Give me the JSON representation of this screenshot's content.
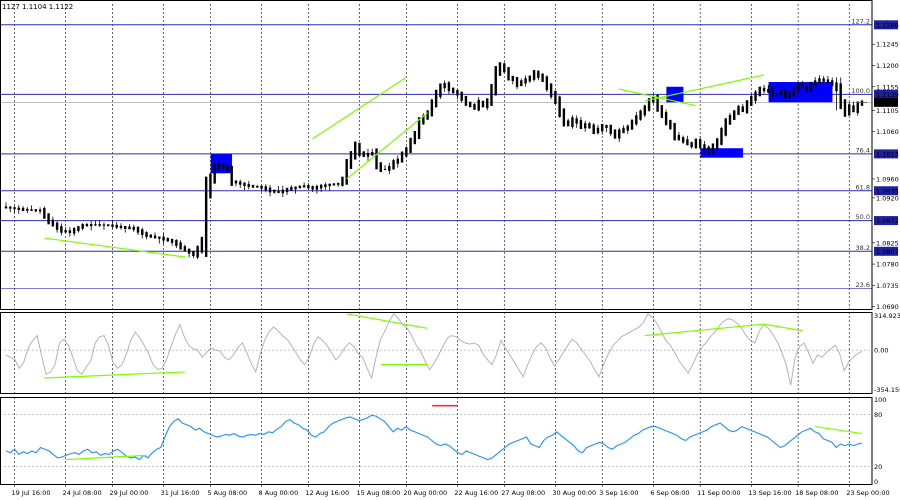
{
  "header": {
    "quote": "1127 1.1104 1.1122"
  },
  "colors": {
    "background": "#ffffff",
    "candle": "#000000",
    "level_line": "#2b2bb8",
    "grid": "#000000",
    "trend_line": "#7cfc00",
    "highlight_box": "#0000ff",
    "cci_line": "#b4b4b4",
    "rsi_line": "#1e90ff",
    "rsi_marker": "#ff2a2a",
    "price_tag": "#2020a0"
  },
  "chart_data": [
    {
      "type": "line",
      "name": "main-price-chart",
      "x_tick_labels": [
        "19 Jul 16:00",
        "24 Jul 08:00",
        "29 Jul 00:00",
        "31 Jul 16:00",
        "5 Aug 08:00",
        "8 Aug 00:00",
        "12 Aug 16:00",
        "15 Aug 08:00",
        "20 Aug 00:00",
        "22 Aug 16:00",
        "27 Aug 08:00",
        "30 Aug 00:00",
        "3 Sep 16:00",
        "6 Sep 08:00",
        "11 Sep 00:00",
        "13 Sep 16:00",
        "18 Sep 08:00",
        "23 Sep 00:00"
      ],
      "y_ticks": [
        1.1245,
        1.12,
        1.1155,
        1.1105,
        1.106,
        1.096,
        1.092,
        1.0825,
        1.078,
        1.0735,
        1.069
      ],
      "ylim": [
        1.0685,
        1.133
      ],
      "fib_levels": [
        {
          "label": "127.2",
          "price": 1.1286
        },
        {
          "label": "100.0",
          "price": 1.1139
        },
        {
          "label": "76.4",
          "price": 1.1013
        },
        {
          "label": "61.8",
          "price": 1.0935
        },
        {
          "label": "50.0",
          "price": 1.0872
        },
        {
          "label": "38.2",
          "price": 1.0807
        },
        {
          "label": "23.6",
          "price": 1.0728
        }
      ],
      "price_tags": [
        "1.1286",
        "1.1139",
        "1.1122",
        "1.1013",
        "1.0935",
        "1.0872",
        "1.0807"
      ],
      "current_price": 1.1122,
      "close_path": [
        [
          0,
          1.09
        ],
        [
          4,
          1.0895
        ],
        [
          8,
          1.0893
        ],
        [
          10,
          1.087
        ],
        [
          13,
          1.085
        ],
        [
          15,
          1.0848
        ],
        [
          18,
          1.0862
        ],
        [
          21,
          1.0863
        ],
        [
          24,
          1.0862
        ],
        [
          27,
          1.0858
        ],
        [
          30,
          1.0855
        ],
        [
          33,
          1.084
        ],
        [
          36,
          1.0835
        ],
        [
          39,
          1.0828
        ],
        [
          41,
          1.0815
        ],
        [
          43,
          1.0805
        ],
        [
          44,
          1.08
        ],
        [
          45,
          1.0812
        ],
        [
          46,
          1.083
        ],
        [
          47,
          1.093
        ],
        [
          48,
          1.096
        ],
        [
          49,
          1.0985
        ],
        [
          50,
          1.099
        ],
        [
          51,
          1.0985
        ],
        [
          52,
          1.0978
        ],
        [
          53,
          1.0955
        ],
        [
          55,
          1.095
        ],
        [
          57,
          1.0945
        ],
        [
          60,
          1.0942
        ],
        [
          62,
          1.0935
        ],
        [
          64,
          1.0932
        ],
        [
          66,
          1.0938
        ],
        [
          68,
          1.0942
        ],
        [
          70,
          1.0945
        ],
        [
          72,
          1.094
        ],
        [
          74,
          1.0945
        ],
        [
          76,
          1.0948
        ],
        [
          78,
          1.095
        ],
        [
          79,
          1.096
        ],
        [
          80,
          1.099
        ],
        [
          81,
          1.101
        ],
        [
          82,
          1.103
        ],
        [
          83,
          1.1015
        ],
        [
          84,
          1.101
        ],
        [
          85,
          1.1012
        ],
        [
          86,
          1.1015
        ],
        [
          87,
          1.099
        ],
        [
          88,
          1.098
        ],
        [
          89,
          1.098
        ],
        [
          90,
          1.0985
        ],
        [
          91,
          1.0995
        ],
        [
          92,
          1.1
        ],
        [
          93,
          1.1012
        ],
        [
          94,
          1.1022
        ],
        [
          95,
          1.104
        ],
        [
          96,
          1.1055
        ],
        [
          97,
          1.108
        ],
        [
          98,
          1.109
        ],
        [
          99,
          1.11
        ],
        [
          100,
          1.112
        ],
        [
          101,
          1.114
        ],
        [
          102,
          1.1155
        ],
        [
          103,
          1.116
        ],
        [
          104,
          1.115
        ],
        [
          105,
          1.1145
        ],
        [
          106,
          1.114
        ],
        [
          107,
          1.113
        ],
        [
          108,
          1.112
        ],
        [
          109,
          1.1115
        ],
        [
          110,
          1.111
        ],
        [
          111,
          1.1122
        ],
        [
          112,
          1.1115
        ],
        [
          113,
          1.1125
        ],
        [
          114,
          1.115
        ],
        [
          115,
          1.1185
        ],
        [
          116,
          1.12
        ],
        [
          117,
          1.119
        ],
        [
          118,
          1.1175
        ],
        [
          119,
          1.117
        ],
        [
          120,
          1.116
        ],
        [
          121,
          1.1165
        ],
        [
          122,
          1.117
        ],
        [
          123,
          1.1175
        ],
        [
          124,
          1.1185
        ],
        [
          125,
          1.1178
        ],
        [
          126,
          1.117
        ],
        [
          127,
          1.1155
        ],
        [
          128,
          1.114
        ],
        [
          129,
          1.1125
        ],
        [
          130,
          1.11
        ],
        [
          131,
          1.108
        ],
        [
          132,
          1.1075
        ],
        [
          133,
          1.1085
        ],
        [
          134,
          1.108
        ],
        [
          135,
          1.107
        ],
        [
          136,
          1.1075
        ],
        [
          137,
          1.107
        ],
        [
          138,
          1.106
        ],
        [
          139,
          1.1065
        ],
        [
          140,
          1.1072
        ],
        [
          141,
          1.107
        ],
        [
          142,
          1.106
        ],
        [
          143,
          1.105
        ],
        [
          144,
          1.106
        ],
        [
          145,
          1.1065
        ],
        [
          146,
          1.107
        ],
        [
          147,
          1.108
        ],
        [
          148,
          1.109
        ],
        [
          149,
          1.11
        ],
        [
          150,
          1.111
        ],
        [
          151,
          1.1125
        ],
        [
          152,
          1.113
        ],
        [
          153,
          1.111
        ],
        [
          154,
          1.1095
        ],
        [
          155,
          1.108
        ],
        [
          156,
          1.107
        ],
        [
          157,
          1.105
        ],
        [
          158,
          1.1045
        ],
        [
          159,
          1.104
        ],
        [
          160,
          1.1035
        ],
        [
          161,
          1.103
        ],
        [
          162,
          1.104
        ],
        [
          163,
          1.103
        ],
        [
          164,
          1.1025
        ],
        [
          165,
          1.102
        ],
        [
          166,
          1.103
        ],
        [
          167,
          1.104
        ],
        [
          168,
          1.106
        ],
        [
          169,
          1.108
        ],
        [
          170,
          1.109
        ],
        [
          171,
          1.11
        ],
        [
          172,
          1.111
        ],
        [
          173,
          1.1105
        ],
        [
          174,
          1.112
        ],
        [
          175,
          1.113
        ],
        [
          176,
          1.114
        ],
        [
          177,
          1.115
        ],
        [
          178,
          1.1148
        ],
        [
          179,
          1.1145
        ],
        [
          180,
          1.1138
        ],
        [
          181,
          1.114
        ],
        [
          182,
          1.1145
        ],
        [
          183,
          1.1135
        ],
        [
          184,
          1.114
        ],
        [
          185,
          1.115
        ],
        [
          186,
          1.116
        ],
        [
          187,
          1.1155
        ],
        [
          188,
          1.115
        ],
        [
          189,
          1.116
        ],
        [
          190,
          1.1165
        ],
        [
          191,
          1.117
        ],
        [
          192,
          1.1168
        ],
        [
          193,
          1.1165
        ],
        [
          194,
          1.116
        ],
        [
          195,
          1.115
        ],
        [
          196,
          1.112
        ],
        [
          197,
          1.11
        ],
        [
          198,
          1.1112
        ],
        [
          199,
          1.1105
        ],
        [
          200,
          1.1118
        ],
        [
          201,
          1.1122
        ]
      ]
    },
    {
      "type": "line",
      "name": "cci-oscillator",
      "y_tick_labels": [
        "314.9232",
        "0.00",
        "-354.1592"
      ],
      "ylim": [
        -354.1592,
        314.9232
      ],
      "values": [
        -40,
        -60,
        -80,
        -150,
        -100,
        20,
        80,
        120,
        -50,
        -200,
        -180,
        -120,
        60,
        90,
        40,
        -60,
        -170,
        -200,
        -140,
        -90,
        60,
        110,
        120,
        40,
        -100,
        -150,
        -120,
        -30,
        80,
        150,
        100,
        40,
        -30,
        -120,
        -160,
        -150,
        -80,
        30,
        130,
        210,
        110,
        40,
        10,
        0,
        -60,
        -20,
        20,
        0,
        -10,
        -60,
        -80,
        -40,
        20,
        60,
        -20,
        -110,
        -180,
        -40,
        80,
        150,
        190,
        160,
        120,
        90,
        40,
        -20,
        -80,
        -120,
        -60,
        50,
        110,
        80,
        40,
        -20,
        -80,
        -40,
        20,
        60,
        30,
        -30,
        -60,
        -150,
        -230,
        -60,
        90,
        160,
        240,
        300,
        260,
        210,
        180,
        120,
        40,
        -10,
        -90,
        -160,
        -110,
        -40,
        30,
        100,
        120,
        110,
        80,
        60,
        50,
        60,
        40,
        -30,
        -80,
        -120,
        -40,
        80,
        20,
        -40,
        -100,
        -160,
        -220,
        -120,
        -40,
        30,
        60,
        20,
        -60,
        -130,
        -80,
        -20,
        40,
        90,
        60,
        10,
        -40,
        -90,
        -160,
        -220,
        -120,
        -40,
        30,
        70,
        110,
        130,
        150,
        170,
        190,
        230,
        300,
        270,
        220,
        150,
        80,
        40,
        -20,
        -90,
        -140,
        -190,
        -120,
        -40,
        20,
        60,
        110,
        150,
        200,
        240,
        260,
        250,
        220,
        180,
        120,
        80,
        60,
        160,
        210,
        180,
        130,
        70,
        -20,
        -120,
        -290,
        -60,
        30,
        60,
        -20,
        -110,
        -40,
        -60,
        -20,
        10,
        40,
        -30,
        -170,
        -100,
        -60,
        -30,
        -10
      ]
    },
    {
      "type": "line",
      "name": "rsi-oscillator",
      "y_tick_labels": [
        "100",
        "80",
        "20",
        "0"
      ],
      "ylim": [
        0,
        100
      ],
      "values": [
        38,
        36,
        40,
        34,
        37,
        35,
        38,
        36,
        42,
        40,
        38,
        34,
        30,
        31,
        33,
        35,
        36,
        34,
        38,
        40,
        36,
        37,
        33,
        35,
        34,
        38,
        40,
        36,
        32,
        30,
        31,
        28,
        33,
        30,
        36,
        40,
        42,
        55,
        66,
        72,
        75,
        70,
        68,
        66,
        62,
        64,
        60,
        58,
        56,
        54,
        55,
        57,
        56,
        58,
        55,
        54,
        56,
        57,
        56,
        58,
        57,
        60,
        59,
        63,
        66,
        72,
        74,
        70,
        68,
        64,
        62,
        56,
        54,
        58,
        60,
        66,
        70,
        72,
        74,
        76,
        77,
        75,
        73,
        74,
        76,
        79,
        78,
        75,
        72,
        66,
        60,
        64,
        62,
        66,
        62,
        60,
        58,
        56,
        54,
        50,
        46,
        44,
        46,
        44,
        40,
        36,
        34,
        38,
        36,
        34,
        32,
        30,
        28,
        30,
        34,
        38,
        42,
        46,
        48,
        50,
        52,
        54,
        46,
        44,
        42,
        50,
        54,
        56,
        60,
        56,
        52,
        48,
        44,
        38,
        36,
        42,
        44,
        46,
        48,
        46,
        42,
        40,
        44,
        46,
        48,
        52,
        56,
        58,
        62,
        64,
        66,
        66,
        64,
        62,
        60,
        58,
        56,
        52,
        50,
        54,
        56,
        58,
        60,
        62,
        66,
        68,
        70,
        66,
        62,
        60,
        62,
        66,
        64,
        62,
        60,
        58,
        56,
        54,
        50,
        46,
        42,
        44,
        48,
        52,
        56,
        60,
        62,
        64,
        60,
        58,
        52,
        50,
        48,
        42,
        46,
        44,
        46,
        44,
        46,
        47
      ]
    }
  ]
}
